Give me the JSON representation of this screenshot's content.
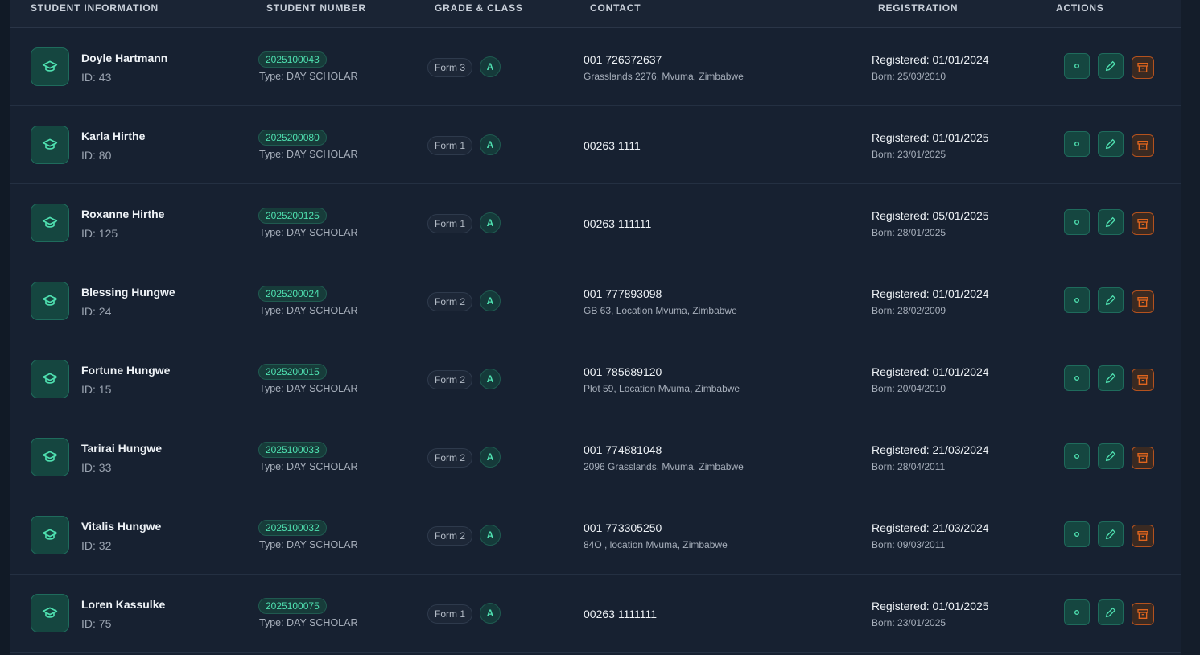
{
  "headers": {
    "student_information": "STUDENT INFORMATION",
    "student_number": "STUDENT NUMBER",
    "grade_class": "GRADE & CLASS",
    "contact": "CONTACT",
    "registration": "REGISTRATION",
    "actions": "ACTIONS"
  },
  "colors": {
    "accent": "#4fe0b0",
    "danger": "#e0651e",
    "background": "#172131"
  },
  "icons": {
    "avatar": "graduation-cap-icon",
    "view": "eye-dot-icon",
    "edit": "pencil-icon",
    "archive": "archive-box-icon"
  },
  "students": [
    {
      "name": "Doyle Hartmann",
      "id": "ID: 43",
      "number": "2025100043",
      "type": "Type: DAY SCHOLAR",
      "form": "Form 3",
      "class": "A",
      "phone": "001 726372637",
      "address": "Grasslands 2276, Mvuma, Zimbabwe",
      "registered": "Registered: 01/01/2024",
      "born": "Born: 25/03/2010"
    },
    {
      "name": "Karla Hirthe",
      "id": "ID: 80",
      "number": "2025200080",
      "type": "Type: DAY SCHOLAR",
      "form": "Form 1",
      "class": "A",
      "phone": "00263 1111",
      "address": "",
      "registered": "Registered: 01/01/2025",
      "born": "Born: 23/01/2025"
    },
    {
      "name": "Roxanne Hirthe",
      "id": "ID: 125",
      "number": "2025200125",
      "type": "Type: DAY SCHOLAR",
      "form": "Form 1",
      "class": "A",
      "phone": "00263 111111",
      "address": "",
      "registered": "Registered: 05/01/2025",
      "born": "Born: 28/01/2025"
    },
    {
      "name": "Blessing Hungwe",
      "id": "ID: 24",
      "number": "2025200024",
      "type": "Type: DAY SCHOLAR",
      "form": "Form 2",
      "class": "A",
      "phone": "001 777893098",
      "address": "GB 63, Location Mvuma, Zimbabwe",
      "registered": "Registered: 01/01/2024",
      "born": "Born: 28/02/2009"
    },
    {
      "name": "Fortune Hungwe",
      "id": "ID: 15",
      "number": "2025200015",
      "type": "Type: DAY SCHOLAR",
      "form": "Form 2",
      "class": "A",
      "phone": "001 785689120",
      "address": "Plot 59, Location Mvuma, Zimbabwe",
      "registered": "Registered: 01/01/2024",
      "born": "Born: 20/04/2010"
    },
    {
      "name": "Tarirai Hungwe",
      "id": "ID: 33",
      "number": "2025100033",
      "type": "Type: DAY SCHOLAR",
      "form": "Form 2",
      "class": "A",
      "phone": "001 774881048",
      "address": "2096 Grasslands, Mvuma, Zimbabwe",
      "registered": "Registered: 21/03/2024",
      "born": "Born: 28/04/2011"
    },
    {
      "name": "Vitalis Hungwe",
      "id": "ID: 32",
      "number": "2025100032",
      "type": "Type: DAY SCHOLAR",
      "form": "Form 2",
      "class": "A",
      "phone": "001 773305250",
      "address": "84O , location Mvuma, Zimbabwe",
      "registered": "Registered: 21/03/2024",
      "born": "Born: 09/03/2011"
    },
    {
      "name": "Loren Kassulke",
      "id": "ID: 75",
      "number": "2025100075",
      "type": "Type: DAY SCHOLAR",
      "form": "Form 1",
      "class": "A",
      "phone": "00263 1111111",
      "address": "",
      "registered": "Registered: 01/01/2025",
      "born": "Born: 23/01/2025"
    }
  ]
}
